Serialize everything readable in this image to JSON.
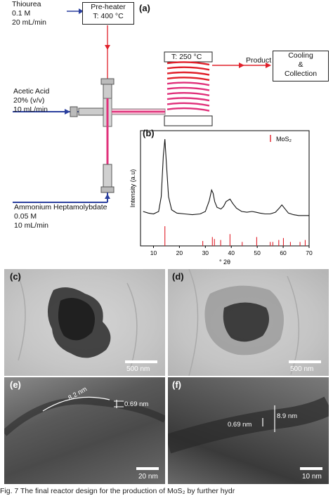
{
  "panel_a": {
    "label": "(a)",
    "thiourea": {
      "name": "Thiourea",
      "conc": "0.1 M",
      "flow": "20 mL/min"
    },
    "preheater": {
      "line1": "Pre-heater",
      "line2": "T: 400 °C"
    },
    "acetic": {
      "name": "Acetic Acid",
      "conc": "20% (v/v)",
      "flow": "10 mL/min"
    },
    "ammonium": {
      "name": "Ammonium Heptamolybdate",
      "conc": "0.05 M",
      "flow": "10 mL/min"
    },
    "reactor_temp": "T: 250 °C",
    "product": "Product",
    "cooling": {
      "line1": "Cooling",
      "line2": "&",
      "line3": "Collection"
    },
    "colors": {
      "blue": "#2a3f9e",
      "red": "#e0202a",
      "magenta": "#e0307a"
    }
  },
  "panel_b": {
    "label": "(b)"
  },
  "chart_data": {
    "type": "line",
    "xlabel": "° 2θ",
    "ylabel": "Intensity (a.u)",
    "xlim": [
      5,
      70
    ],
    "xticks": [
      10,
      20,
      30,
      40,
      50,
      60,
      70
    ],
    "legend": {
      "label": "MoS₂",
      "position": "top-right",
      "color": "#e0202a"
    },
    "series": [
      {
        "x": [
          6,
          8,
          10,
          12,
          13,
          13.8,
          14.4,
          15,
          15.8,
          17,
          19,
          22,
          25,
          28,
          30,
          31.5,
          32.4,
          33,
          33.6,
          34.5,
          36,
          37,
          38,
          39.5,
          40.5,
          42,
          44,
          46,
          48,
          49.5,
          51,
          53,
          55,
          57,
          58.5,
          59.5,
          60.5,
          62,
          64,
          66,
          68,
          70
        ],
        "y": [
          0.12,
          0.1,
          0.09,
          0.12,
          0.3,
          0.8,
          1.0,
          0.7,
          0.3,
          0.14,
          0.1,
          0.09,
          0.08,
          0.09,
          0.12,
          0.25,
          0.38,
          0.34,
          0.24,
          0.17,
          0.15,
          0.18,
          0.24,
          0.27,
          0.22,
          0.16,
          0.12,
          0.11,
          0.12,
          0.11,
          0.1,
          0.09,
          0.09,
          0.11,
          0.16,
          0.2,
          0.16,
          0.1,
          0.08,
          0.07,
          0.07,
          0.07
        ]
      }
    ],
    "reference_peaks": [
      {
        "x": 14.4,
        "h": 1.0
      },
      {
        "x": 29.0,
        "h": 0.25
      },
      {
        "x": 32.7,
        "h": 0.45
      },
      {
        "x": 33.5,
        "h": 0.35
      },
      {
        "x": 35.9,
        "h": 0.3
      },
      {
        "x": 39.5,
        "h": 0.6
      },
      {
        "x": 44.2,
        "h": 0.2
      },
      {
        "x": 49.8,
        "h": 0.45
      },
      {
        "x": 55.0,
        "h": 0.2
      },
      {
        "x": 56.0,
        "h": 0.2
      },
      {
        "x": 58.3,
        "h": 0.3
      },
      {
        "x": 60.1,
        "h": 0.4
      },
      {
        "x": 62.8,
        "h": 0.2
      },
      {
        "x": 66.5,
        "h": 0.2
      },
      {
        "x": 68.5,
        "h": 0.3
      }
    ]
  },
  "panel_c": {
    "label": "(c)",
    "scale": "500 nm"
  },
  "panel_d": {
    "label": "(d)",
    "scale": "500 nm"
  },
  "panel_e": {
    "label": "(e)",
    "scale": "20 nm",
    "ann1": "8.2 nm",
    "ann2": "0.69 nm"
  },
  "panel_f": {
    "label": "(f)",
    "scale": "10 nm",
    "ann1": "0.69 nm",
    "ann2": "8.9 nm"
  },
  "caption": "Fig. 7   The final reactor design for the production of MoS₂ by further hydr"
}
